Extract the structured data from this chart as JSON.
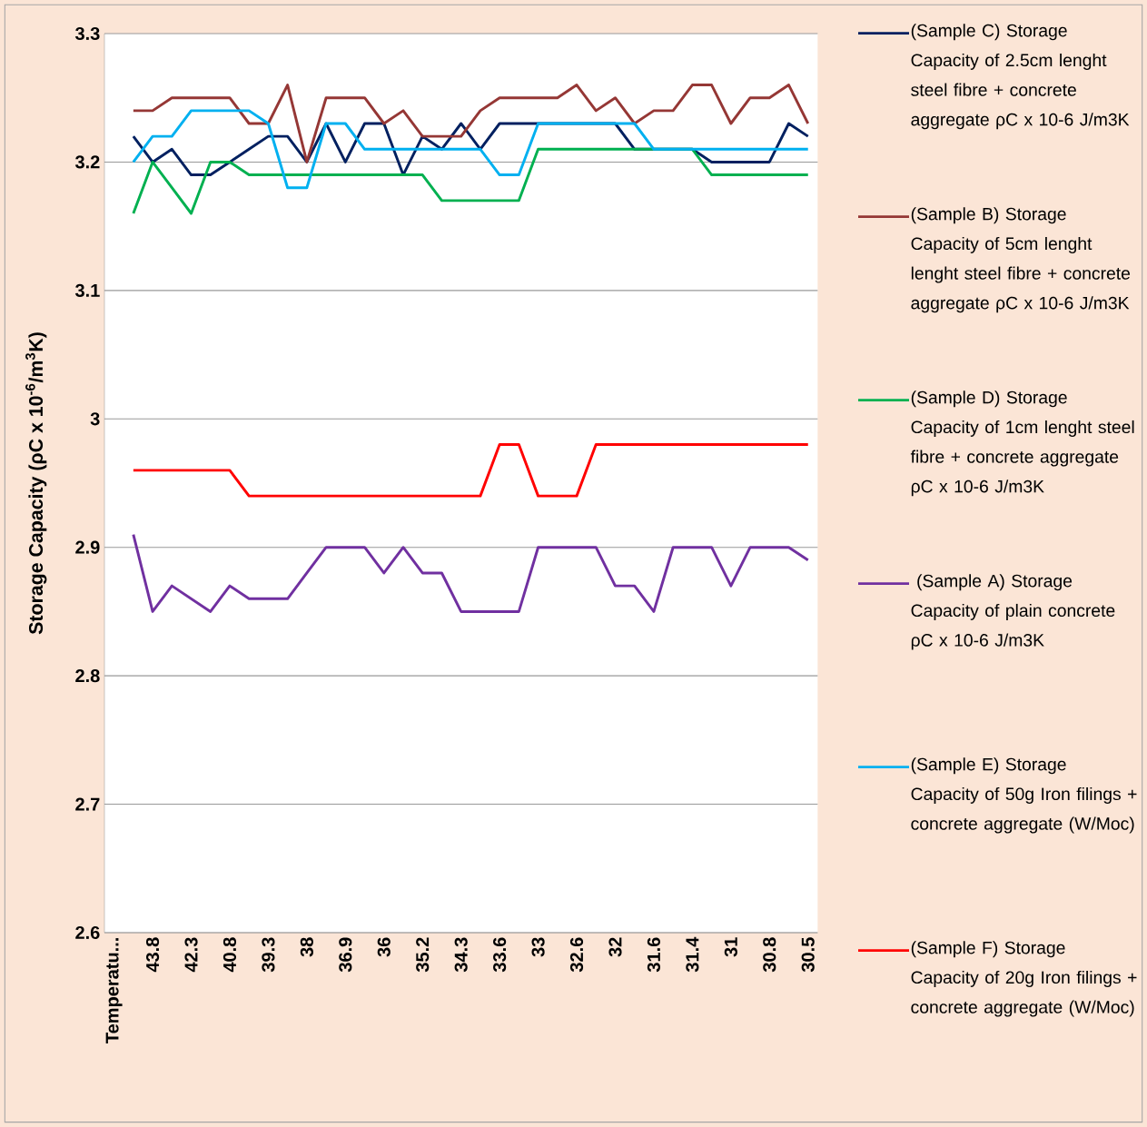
{
  "chart_data": {
    "type": "line",
    "ylabel": "Storage Capacity (ρC x 10$^{-6}$/m$^{3}$K)",
    "categories": [
      "Temperatu...",
      null,
      "43.8",
      null,
      "42.3",
      null,
      "40.8",
      null,
      "39.3",
      null,
      "38",
      null,
      "36.9",
      null,
      "36",
      null,
      "35.2",
      null,
      "34.3",
      null,
      "33.6",
      null,
      "33",
      null,
      "32.6",
      null,
      "32",
      null,
      "31.6",
      null,
      "31.4",
      null,
      "31",
      null,
      "30.8",
      null,
      "30.5"
    ],
    "series": [
      {
        "name": "(Sample C) Storage Capacity of 2.5cm lenght steel fibre + concrete aggregate  ρC x 10-6 J/m3K",
        "color": "#002060",
        "values": [
          null,
          3.22,
          3.2,
          3.21,
          3.19,
          3.19,
          3.2,
          3.21,
          3.22,
          3.22,
          3.2,
          3.23,
          3.2,
          3.23,
          3.23,
          3.19,
          3.22,
          3.21,
          3.23,
          3.21,
          3.23,
          3.23,
          3.23,
          3.23,
          3.23,
          3.23,
          3.23,
          3.21,
          3.21,
          null,
          3.21,
          3.2,
          3.2,
          3.2,
          3.2,
          3.23,
          3.22
        ]
      },
      {
        "name": "(Sample B) Storage Capacity  of 5cm lenght lenght steel fibre + concrete aggregate    ρC x 10-6 J/m3K",
        "color": "#953735",
        "values": [
          null,
          3.24,
          3.24,
          3.25,
          3.25,
          3.25,
          3.25,
          3.23,
          3.23,
          3.26,
          3.2,
          3.25,
          3.25,
          3.25,
          3.23,
          3.24,
          3.22,
          3.22,
          3.22,
          3.24,
          3.25,
          3.25,
          3.25,
          3.25,
          3.26,
          3.24,
          3.25,
          3.23,
          3.24,
          3.24,
          3.26,
          3.26,
          3.23,
          3.25,
          3.25,
          3.26,
          3.23
        ]
      },
      {
        "name": "(Sample D) Storage Capacity of 1cm lenght steel fibre + concrete aggregate   ρC x 10-6 J/m3K",
        "color": "#00b050",
        "values": [
          null,
          3.16,
          3.2,
          3.18,
          3.16,
          3.2,
          3.2,
          3.19,
          3.19,
          3.19,
          3.19,
          3.19,
          3.19,
          3.19,
          3.19,
          3.19,
          3.19,
          3.17,
          3.17,
          3.17,
          3.17,
          3.17,
          3.21,
          3.21,
          3.21,
          3.21,
          3.21,
          3.21,
          3.21,
          3.21,
          3.21,
          3.19,
          3.19,
          3.19,
          3.19,
          3.19,
          3.19
        ]
      },
      {
        "name": " (Sample A) Storage Capacity   of plain concrete    ρC x 10-6 J/m3K",
        "color": "#7030a0",
        "values": [
          null,
          2.91,
          2.85,
          2.87,
          2.86,
          2.85,
          2.87,
          2.86,
          2.86,
          2.86,
          2.88,
          2.9,
          2.9,
          2.9,
          2.88,
          2.9,
          2.88,
          2.88,
          2.85,
          2.85,
          2.85,
          2.85,
          2.9,
          2.9,
          2.9,
          2.9,
          2.87,
          2.87,
          2.85,
          2.9,
          2.9,
          2.9,
          2.87,
          2.9,
          2.9,
          2.9,
          2.89
        ]
      },
      {
        "name": "(Sample E) Storage Capacity  of 50g Iron filings + concrete aggregate   (W/Moc)",
        "color": "#00b0f0",
        "values": [
          null,
          3.2,
          3.22,
          3.22,
          3.24,
          3.24,
          3.24,
          3.24,
          3.23,
          3.18,
          3.18,
          3.23,
          3.23,
          3.21,
          3.21,
          3.21,
          3.21,
          3.21,
          3.21,
          3.21,
          3.19,
          3.19,
          3.23,
          3.23,
          3.23,
          3.23,
          3.23,
          3.23,
          3.21,
          3.21,
          3.21,
          3.21,
          3.21,
          3.21,
          3.21,
          3.21,
          3.21
        ]
      },
      {
        "name": "(Sample F) Storage Capacity  of 20g Iron filings + concrete aggregate   (W/Moc)",
        "color": "#ff0000",
        "values": [
          null,
          2.96,
          2.96,
          2.96,
          2.96,
          2.96,
          2.96,
          2.94,
          2.94,
          2.94,
          2.94,
          2.94,
          2.94,
          2.94,
          2.94,
          2.94,
          2.94,
          2.94,
          2.94,
          2.94,
          2.98,
          2.98,
          2.94,
          2.94,
          2.94,
          2.98,
          2.98,
          2.98,
          2.98,
          2.98,
          2.98,
          2.98,
          2.98,
          2.98,
          2.98,
          2.98,
          2.98
        ]
      }
    ],
    "ylim": [
      2.6,
      3.3
    ],
    "yticks": [
      2.6,
      2.7,
      2.8,
      2.9,
      3,
      3.1,
      3.2,
      3.3
    ],
    "grid": "y",
    "legend": "right"
  }
}
